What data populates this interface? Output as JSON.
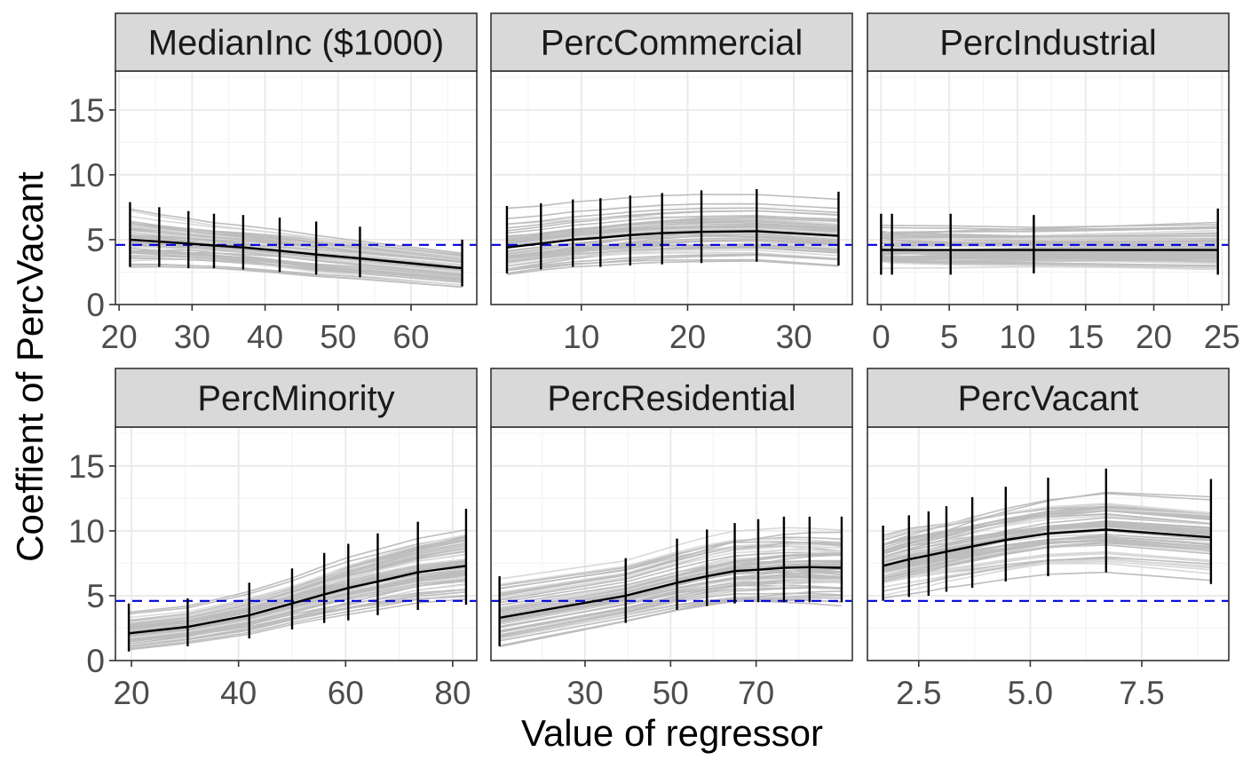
{
  "chart_data": {
    "type": "line",
    "layout": "facet-grid 2x3",
    "xlabel": "Value of regressor",
    "ylabel": "Coeffient of PercVacant",
    "ylim": [
      0,
      18
    ],
    "y_ticks": [
      0,
      5,
      10,
      15
    ],
    "y_tick_labels": [
      "0",
      "5",
      "10",
      "15"
    ],
    "reference_line": {
      "y": 4.6,
      "color": "#0000dd",
      "style": "dashed"
    },
    "colors": {
      "simulation_lines": "#bdbdbd",
      "mean_line": "#000000",
      "strip_background": "#d9d9d9"
    },
    "panels": [
      {
        "title": "MedianInc ($1000)",
        "xlim": [
          19.5,
          69
        ],
        "x_ticks": [
          20,
          30,
          40,
          50,
          60
        ],
        "x_tick_labels": [
          "20",
          "30",
          "40",
          "50",
          "60"
        ],
        "points": [
          {
            "x": 21.5,
            "y": 5.0,
            "lo": 2.9,
            "hi": 7.9
          },
          {
            "x": 25.5,
            "y": 4.85,
            "lo": 2.9,
            "hi": 7.5
          },
          {
            "x": 29.5,
            "y": 4.7,
            "lo": 2.8,
            "hi": 7.2
          },
          {
            "x": 33,
            "y": 4.55,
            "lo": 2.8,
            "hi": 7.0
          },
          {
            "x": 37,
            "y": 4.4,
            "lo": 2.7,
            "hi": 6.9
          },
          {
            "x": 42,
            "y": 4.15,
            "lo": 2.5,
            "hi": 6.7
          },
          {
            "x": 47,
            "y": 3.85,
            "lo": 2.3,
            "hi": 6.4
          },
          {
            "x": 53,
            "y": 3.55,
            "lo": 2.1,
            "hi": 6.0
          },
          {
            "x": 67,
            "y": 2.8,
            "lo": 1.4,
            "hi": 5.0
          }
        ]
      },
      {
        "title": "PercCommercial",
        "xlim": [
          1.5,
          35.5
        ],
        "x_ticks": [
          10,
          20,
          30
        ],
        "x_tick_labels": [
          "10",
          "20",
          "30"
        ],
        "points": [
          {
            "x": 3,
            "y": 4.4,
            "lo": 2.4,
            "hi": 7.6
          },
          {
            "x": 6.2,
            "y": 4.7,
            "lo": 2.7,
            "hi": 7.8
          },
          {
            "x": 9.2,
            "y": 5.0,
            "lo": 2.9,
            "hi": 8.1
          },
          {
            "x": 11.8,
            "y": 5.15,
            "lo": 2.9,
            "hi": 8.2
          },
          {
            "x": 14.6,
            "y": 5.35,
            "lo": 3.0,
            "hi": 8.4
          },
          {
            "x": 17.6,
            "y": 5.5,
            "lo": 3.1,
            "hi": 8.6
          },
          {
            "x": 21.3,
            "y": 5.6,
            "lo": 3.2,
            "hi": 8.8
          },
          {
            "x": 26.5,
            "y": 5.65,
            "lo": 3.3,
            "hi": 8.9
          },
          {
            "x": 34.2,
            "y": 5.3,
            "lo": 3.0,
            "hi": 8.7
          }
        ]
      },
      {
        "title": "PercIndustrial",
        "xlim": [
          -1.0,
          25.5
        ],
        "x_ticks": [
          0,
          5,
          10,
          15,
          20,
          25
        ],
        "x_tick_labels": [
          "0",
          "5",
          "10",
          "15",
          "20",
          "25"
        ],
        "points": [
          {
            "x": 0,
            "y": 4.2,
            "lo": 2.3,
            "hi": 7.0
          },
          {
            "x": 0.8,
            "y": 4.2,
            "lo": 2.3,
            "hi": 7.0
          },
          {
            "x": 5.1,
            "y": 4.2,
            "lo": 2.3,
            "hi": 7.0
          },
          {
            "x": 11.2,
            "y": 4.2,
            "lo": 2.4,
            "hi": 6.9
          },
          {
            "x": 24.7,
            "y": 4.2,
            "lo": 2.3,
            "hi": 7.4
          }
        ]
      },
      {
        "title": "PercMinority",
        "xlim": [
          17,
          84.5
        ],
        "x_ticks": [
          20,
          40,
          60,
          80
        ],
        "x_tick_labels": [
          "20",
          "40",
          "60",
          "80"
        ],
        "points": [
          {
            "x": 19.5,
            "y": 2.1,
            "lo": 0.7,
            "hi": 4.4
          },
          {
            "x": 30.5,
            "y": 2.6,
            "lo": 1.1,
            "hi": 4.8
          },
          {
            "x": 42,
            "y": 3.5,
            "lo": 1.7,
            "hi": 6.0
          },
          {
            "x": 50,
            "y": 4.4,
            "lo": 2.4,
            "hi": 7.1
          },
          {
            "x": 56,
            "y": 5.1,
            "lo": 2.9,
            "hi": 8.3
          },
          {
            "x": 60.5,
            "y": 5.6,
            "lo": 3.1,
            "hi": 9.0
          },
          {
            "x": 66,
            "y": 6.1,
            "lo": 3.5,
            "hi": 9.8
          },
          {
            "x": 73.5,
            "y": 6.8,
            "lo": 3.9,
            "hi": 10.7
          },
          {
            "x": 82.5,
            "y": 7.3,
            "lo": 4.3,
            "hi": 11.7
          }
        ]
      },
      {
        "title": "PercResidential",
        "xlim": [
          8,
          92.5
        ],
        "x_ticks": [
          30,
          50,
          70
        ],
        "x_tick_labels": [
          "30",
          "50",
          "70"
        ],
        "points": [
          {
            "x": 10,
            "y": 3.3,
            "lo": 1.1,
            "hi": 6.5
          },
          {
            "x": 39.5,
            "y": 5.0,
            "lo": 2.9,
            "hi": 7.9
          },
          {
            "x": 51.5,
            "y": 6.0,
            "lo": 3.9,
            "hi": 9.4
          },
          {
            "x": 58.5,
            "y": 6.5,
            "lo": 4.2,
            "hi": 10.1
          },
          {
            "x": 65,
            "y": 6.9,
            "lo": 4.4,
            "hi": 10.6
          },
          {
            "x": 70.5,
            "y": 7.0,
            "lo": 4.5,
            "hi": 10.9
          },
          {
            "x": 76.5,
            "y": 7.15,
            "lo": 4.5,
            "hi": 11.1
          },
          {
            "x": 82.5,
            "y": 7.2,
            "lo": 4.5,
            "hi": 11.1
          },
          {
            "x": 90,
            "y": 7.15,
            "lo": 4.5,
            "hi": 11.1
          }
        ]
      },
      {
        "title": "PercVacant",
        "xlim": [
          1.35,
          9.45
        ],
        "x_ticks": [
          2.5,
          5.0,
          7.5
        ],
        "x_tick_labels": [
          "2.5",
          "5.0",
          "7.5"
        ],
        "points": [
          {
            "x": 1.7,
            "y": 7.3,
            "lo": 4.6,
            "hi": 10.4
          },
          {
            "x": 2.28,
            "y": 7.8,
            "lo": 4.9,
            "hi": 11.2
          },
          {
            "x": 2.72,
            "y": 8.1,
            "lo": 5.0,
            "hi": 11.5
          },
          {
            "x": 3.12,
            "y": 8.4,
            "lo": 5.3,
            "hi": 11.9
          },
          {
            "x": 3.7,
            "y": 8.8,
            "lo": 5.6,
            "hi": 12.6
          },
          {
            "x": 4.45,
            "y": 9.3,
            "lo": 6.1,
            "hi": 13.4
          },
          {
            "x": 5.4,
            "y": 9.8,
            "lo": 6.5,
            "hi": 14.1
          },
          {
            "x": 6.7,
            "y": 10.1,
            "lo": 6.8,
            "hi": 14.8
          },
          {
            "x": 9.05,
            "y": 9.5,
            "lo": 5.9,
            "hi": 14.0
          }
        ]
      }
    ]
  }
}
